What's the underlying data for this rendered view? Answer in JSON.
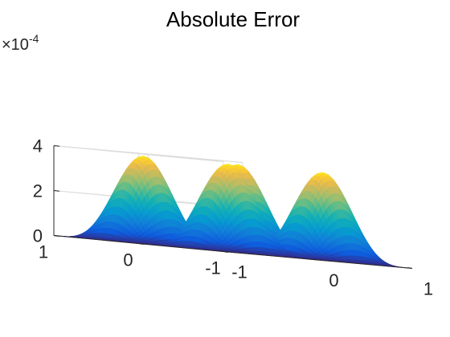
{
  "chart_data": {
    "type": "surface",
    "title": "Absolute Error",
    "z_multiplier_label": "×10",
    "z_multiplier_exponent": "-4",
    "x_ticks": [
      -1,
      0,
      1
    ],
    "x_tick_labels": [
      "-1",
      "0",
      "1"
    ],
    "y_ticks": [
      -1,
      0,
      1
    ],
    "y_tick_labels": [
      "-1",
      "0",
      "1"
    ],
    "z_ticks": [
      0,
      2,
      4
    ],
    "z_tick_labels": [
      "0",
      "2",
      "4"
    ],
    "xlim": [
      -1,
      1
    ],
    "ylim": [
      -1,
      1
    ],
    "zlim": [
      0,
      4
    ],
    "grid": true,
    "colormap": "parula",
    "surface": {
      "description_function": "z = 3.9 * sin^2(pi*x) * sin^2(pi*y)  (in units of 1e-4)",
      "peak_value": 3.9,
      "peak_locations": [
        [
          -0.5,
          -0.5
        ],
        [
          0.5,
          -0.5
        ],
        [
          -0.5,
          0.5
        ],
        [
          0.5,
          0.5
        ]
      ]
    }
  }
}
